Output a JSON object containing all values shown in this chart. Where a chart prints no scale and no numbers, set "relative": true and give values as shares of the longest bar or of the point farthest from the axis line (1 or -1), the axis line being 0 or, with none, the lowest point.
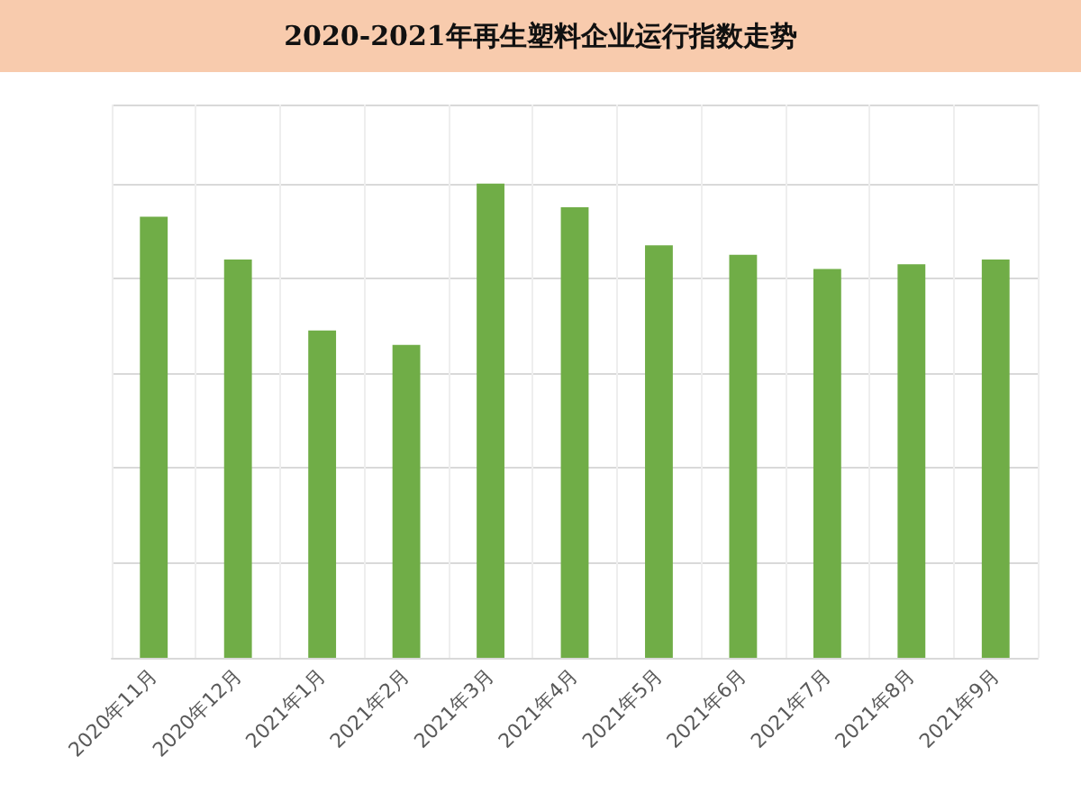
{
  "chart_data": {
    "type": "bar",
    "title": "2020-2021年再生塑料企业运行指数走势",
    "relative": true,
    "grid": true,
    "categories": [
      "2020年11月",
      "2020年12月",
      "2021年1月",
      "2021年2月",
      "2021年3月",
      "2021年4月",
      "2021年5月",
      "2021年6月",
      "2021年7月",
      "2021年8月",
      "2021年9月"
    ],
    "values": [
      0.93,
      0.84,
      0.69,
      0.66,
      1,
      0.95,
      0.87,
      0.85,
      0.82,
      0.83,
      0.84
    ],
    "color": "#70ad47"
  }
}
